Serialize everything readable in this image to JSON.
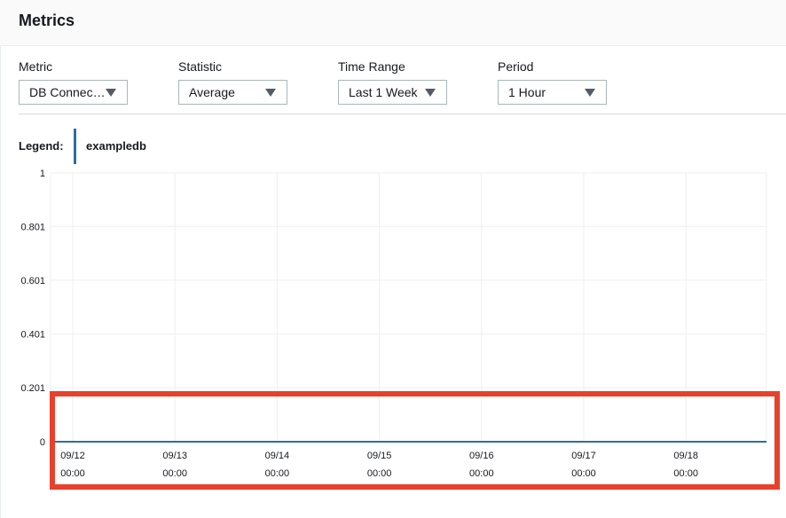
{
  "header": {
    "title": "Metrics"
  },
  "controls": [
    {
      "key": "metric",
      "label": "Metric",
      "value": "DB Connec…"
    },
    {
      "key": "statistic",
      "label": "Statistic",
      "value": "Average"
    },
    {
      "key": "time_range",
      "label": "Time Range",
      "value": "Last 1 Week"
    },
    {
      "key": "period",
      "label": "Period",
      "value": "1 Hour"
    }
  ],
  "legend": {
    "label": "Legend:",
    "series_name": "exampledb",
    "color": "#2f6da6"
  },
  "chart_data": {
    "type": "line",
    "y_ticks": [
      "1",
      "0.801",
      "0.601",
      "0.401",
      "0.201",
      "0"
    ],
    "ylim": [
      0,
      1
    ],
    "x_ticks": [
      {
        "date": "09/12",
        "time": "00:00"
      },
      {
        "date": "09/13",
        "time": "00:00"
      },
      {
        "date": "09/14",
        "time": "00:00"
      },
      {
        "date": "09/15",
        "time": "00:00"
      },
      {
        "date": "09/16",
        "time": "00:00"
      },
      {
        "date": "09/17",
        "time": "00:00"
      },
      {
        "date": "09/18",
        "time": "00:00"
      }
    ],
    "series": [
      {
        "name": "exampledb",
        "x": [
          "09/11 22:00",
          "09/18 22:00"
        ],
        "values": [
          0,
          0
        ]
      }
    ],
    "grid": true,
    "legend_position": "top-left"
  },
  "annotation": {
    "color": "#e8402b"
  }
}
